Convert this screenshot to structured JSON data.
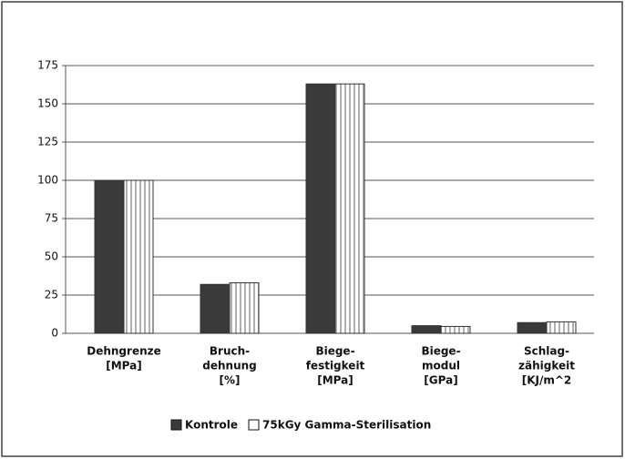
{
  "chart_data": {
    "type": "bar",
    "categories": [
      [
        "Dehngrenze",
        "[MPa]"
      ],
      [
        "Bruch-",
        "dehnung",
        "[%]"
      ],
      [
        "Biege-",
        "festigkeit",
        "[MPa]"
      ],
      [
        "Biege-",
        "modul",
        "[GPa]"
      ],
      [
        "Schlag-",
        "zähigkeit",
        "[KJ/m^2"
      ]
    ],
    "series": [
      {
        "name": "Kontrole",
        "color": "#3a3a3a",
        "values": [
          100,
          32,
          163,
          5,
          7
        ]
      },
      {
        "name": "75kGy Gamma-Sterilisation",
        "color": "#ffffff",
        "values": [
          100,
          33,
          163,
          4.5,
          7.5
        ]
      }
    ],
    "ylim": [
      0,
      175
    ],
    "yticks": [
      0,
      25,
      50,
      75,
      100,
      125,
      150,
      175
    ],
    "grid": true,
    "legend": "bottom"
  }
}
